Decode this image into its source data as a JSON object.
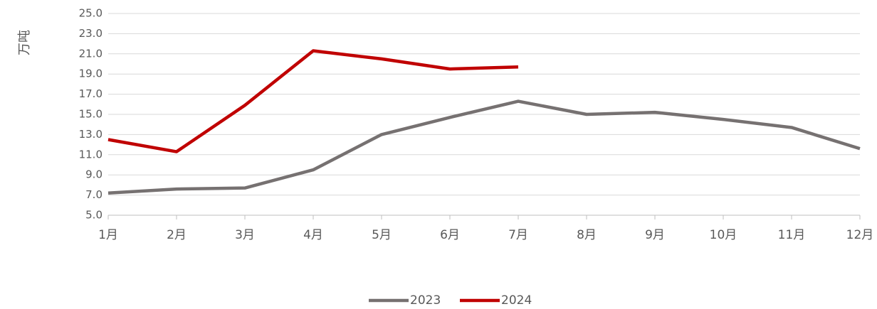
{
  "chart_data": {
    "type": "line",
    "y_label": "万吨",
    "categories": [
      "1月",
      "2月",
      "3月",
      "4月",
      "5月",
      "6月",
      "7月",
      "8月",
      "9月",
      "10月",
      "11月",
      "12月"
    ],
    "series": [
      {
        "name": "2023",
        "color": "#767171",
        "values": [
          7.2,
          7.6,
          7.7,
          9.5,
          13.0,
          14.7,
          16.3,
          15.0,
          15.2,
          14.5,
          13.7,
          11.6
        ]
      },
      {
        "name": "2024",
        "color": "#c00000",
        "values": [
          12.5,
          11.3,
          15.9,
          21.3,
          20.5,
          19.5,
          19.7,
          null,
          null,
          null,
          null,
          null
        ]
      }
    ],
    "ylim": [
      5,
      25
    ],
    "yticks": [
      {
        "value": 5,
        "label": "5.0"
      },
      {
        "value": 7,
        "label": "7.0"
      },
      {
        "value": 9,
        "label": "9.0"
      },
      {
        "value": 11,
        "label": "11.0"
      },
      {
        "value": 13,
        "label": "13.0"
      },
      {
        "value": 15,
        "label": "15.0"
      },
      {
        "value": 17,
        "label": "17.0"
      },
      {
        "value": 19,
        "label": "19.0"
      },
      {
        "value": 21,
        "label": "21.0"
      },
      {
        "value": 23,
        "label": "23.0"
      },
      {
        "value": 25,
        "label": "25.0"
      }
    ],
    "grid": true,
    "legend": "bottom"
  }
}
